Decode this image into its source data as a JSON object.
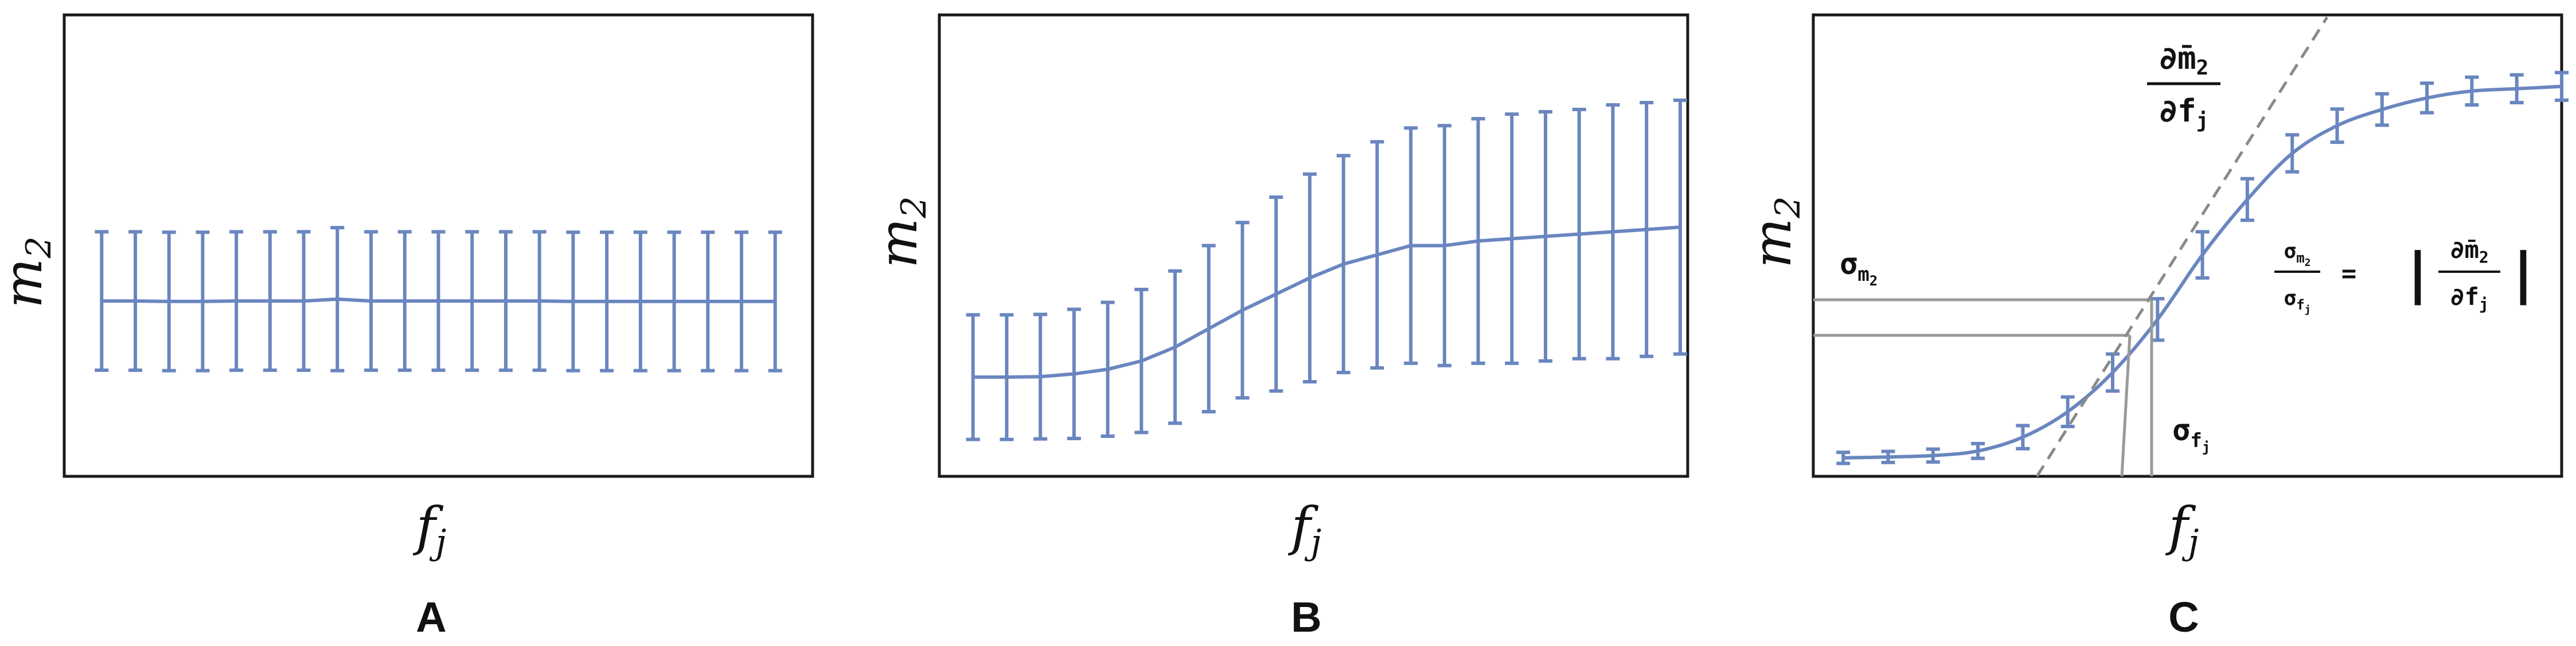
{
  "panels": [
    {
      "label": "A",
      "xlabel": "f",
      "xlabel_sub": "j",
      "ylabel": "m",
      "ylabel_sub": "2"
    },
    {
      "label": "B",
      "xlabel": "f",
      "xlabel_sub": "j",
      "ylabel": "m",
      "ylabel_sub": "2"
    },
    {
      "label": "C",
      "xlabel": "f",
      "xlabel_sub": "j",
      "ylabel": "m",
      "ylabel_sub": "2"
    }
  ],
  "annotations": {
    "sigma": "σ",
    "m": "m",
    "bar_m": "m̄",
    "sub2": "2",
    "f": "f",
    "subj": "j",
    "partial": "∂",
    "equals": "=",
    "abs_bar": "|"
  },
  "colors": {
    "series": "#6a86bf",
    "tangent": "#8a8a8a",
    "guide": "#9a9a9a"
  },
  "chart_data": [
    {
      "type": "line",
      "xlim": [
        0,
        1
      ],
      "ylim": [
        0,
        1
      ],
      "x": [
        0.05,
        0.095,
        0.14,
        0.185,
        0.23,
        0.275,
        0.32,
        0.365,
        0.41,
        0.455,
        0.5,
        0.545,
        0.59,
        0.635,
        0.68,
        0.725,
        0.77,
        0.815,
        0.86,
        0.905,
        0.95
      ],
      "y": [
        0.38,
        0.38,
        0.379,
        0.379,
        0.38,
        0.38,
        0.38,
        0.384,
        0.38,
        0.38,
        0.38,
        0.38,
        0.38,
        0.38,
        0.379,
        0.379,
        0.379,
        0.379,
        0.379,
        0.379,
        0.379
      ],
      "err": [
        0.15,
        0.15,
        0.15,
        0.15,
        0.15,
        0.15,
        0.15,
        0.155,
        0.15,
        0.15,
        0.15,
        0.15,
        0.15,
        0.15,
        0.15,
        0.15,
        0.15,
        0.15,
        0.15,
        0.15,
        0.15
      ]
    },
    {
      "type": "line",
      "xlim": [
        0,
        1
      ],
      "ylim": [
        0,
        1
      ],
      "x": [
        0.045,
        0.09,
        0.135,
        0.18,
        0.225,
        0.27,
        0.315,
        0.36,
        0.405,
        0.45,
        0.495,
        0.54,
        0.585,
        0.63,
        0.675,
        0.72,
        0.765,
        0.81,
        0.855,
        0.9,
        0.945,
        0.99
      ],
      "y": [
        0.215,
        0.215,
        0.216,
        0.222,
        0.232,
        0.25,
        0.28,
        0.32,
        0.36,
        0.395,
        0.43,
        0.46,
        0.48,
        0.5,
        0.5,
        0.51,
        0.515,
        0.52,
        0.525,
        0.53,
        0.535,
        0.54
      ],
      "err": [
        0.135,
        0.135,
        0.135,
        0.14,
        0.145,
        0.155,
        0.165,
        0.18,
        0.19,
        0.21,
        0.225,
        0.235,
        0.245,
        0.255,
        0.26,
        0.265,
        0.27,
        0.27,
        0.27,
        0.275,
        0.275,
        0.275
      ]
    },
    {
      "type": "line",
      "xlim": [
        0,
        1
      ],
      "ylim": [
        0,
        1
      ],
      "x": [
        0.04,
        0.1,
        0.16,
        0.22,
        0.28,
        0.34,
        0.4,
        0.46,
        0.52,
        0.58,
        0.64,
        0.7,
        0.76,
        0.82,
        0.88,
        0.94,
        1.0
      ],
      "y": [
        0.04,
        0.042,
        0.045,
        0.055,
        0.085,
        0.14,
        0.225,
        0.34,
        0.48,
        0.6,
        0.7,
        0.76,
        0.795,
        0.82,
        0.835,
        0.84,
        0.845
      ],
      "err": [
        0.012,
        0.012,
        0.014,
        0.016,
        0.025,
        0.032,
        0.04,
        0.045,
        0.05,
        0.045,
        0.04,
        0.036,
        0.034,
        0.032,
        0.03,
        0.03,
        0.03
      ]
    }
  ]
}
